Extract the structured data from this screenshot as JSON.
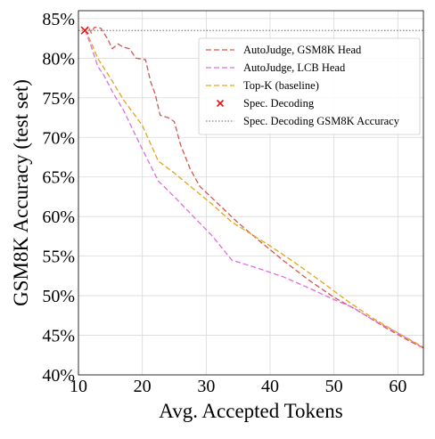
{
  "chart_data": {
    "type": "line",
    "xlabel": "Avg. Accepted Tokens",
    "ylabel": "GSM8K Accuracy (test set)",
    "xlim": [
      10,
      64
    ],
    "ylim": [
      40,
      86
    ],
    "xticks": [
      {
        "value": 10,
        "label": "10"
      },
      {
        "value": 20,
        "label": "20"
      },
      {
        "value": 30,
        "label": "30"
      },
      {
        "value": 40,
        "label": "40"
      },
      {
        "value": 50,
        "label": "50"
      },
      {
        "value": 60,
        "label": "60"
      }
    ],
    "yticks": [
      {
        "value": 40,
        "label": "40%"
      },
      {
        "value": 45,
        "label": "45%"
      },
      {
        "value": 50,
        "label": "50%"
      },
      {
        "value": 55,
        "label": "55%"
      },
      {
        "value": 60,
        "label": "60%"
      },
      {
        "value": 65,
        "label": "65%"
      },
      {
        "value": 70,
        "label": "70%"
      },
      {
        "value": 75,
        "label": "75%"
      },
      {
        "value": 80,
        "label": "80%"
      },
      {
        "value": 85,
        "label": "85%"
      }
    ],
    "grid": true,
    "legend_position": "top-right",
    "series": [
      {
        "name": "AutoJudge, GSM8K Head",
        "style": "dashed",
        "color": "#d9534f",
        "x": [
          11.0,
          11.5,
          12.0,
          12.5,
          13.5,
          14.5,
          15.3,
          16.2,
          17.0,
          18.0,
          19.0,
          20.5,
          21.3,
          22.0,
          22.8,
          24.0,
          25.0,
          26.0,
          27.5,
          29.0,
          32.0,
          35.0,
          38.5,
          42.0,
          46.0,
          50.0,
          54.0,
          58.0,
          62.0,
          64.0
        ],
        "y": [
          83.4,
          84.0,
          83.2,
          83.9,
          83.8,
          82.5,
          81.2,
          81.8,
          81.4,
          81.2,
          80.0,
          79.8,
          77.0,
          75.5,
          72.8,
          72.5,
          72.0,
          69.0,
          66.0,
          63.8,
          61.5,
          59.2,
          56.8,
          54.5,
          52.0,
          49.8,
          48.0,
          46.0,
          44.2,
          43.4
        ]
      },
      {
        "name": "AutoJudge, LCB Head",
        "style": "dashed",
        "color": "#e06ee0",
        "x": [
          11.0,
          12.0,
          13.0,
          14.0,
          15.5,
          17.0,
          18.5,
          20.0,
          22.5,
          25.0,
          28.0,
          31.0,
          34.0,
          38.0,
          42.0,
          46.0,
          50.0,
          53.0,
          56.0,
          60.0,
          64.0
        ],
        "y": [
          83.6,
          81.5,
          79.0,
          77.8,
          75.5,
          73.5,
          71.0,
          68.5,
          64.5,
          62.5,
          60.0,
          57.5,
          54.5,
          53.5,
          52.4,
          51.0,
          49.5,
          48.5,
          47.0,
          45.3,
          43.4
        ]
      },
      {
        "name": "Top-K (baseline)",
        "style": "dashed",
        "color": "#e3a618",
        "x": [
          11.0,
          12.0,
          13.0,
          15.0,
          17.0,
          20.0,
          22.5,
          25.0,
          28.0,
          31.0,
          34.0,
          37.0,
          40.0,
          44.0,
          48.0,
          52.0,
          56.0,
          60.0,
          64.0
        ],
        "y": [
          83.6,
          82.0,
          80.0,
          77.5,
          74.8,
          71.5,
          67.0,
          65.5,
          63.5,
          61.5,
          59.3,
          57.8,
          56.3,
          54.1,
          51.8,
          49.4,
          47.2,
          45.3,
          43.5
        ]
      }
    ],
    "markers": [
      {
        "name": "Spec. Decoding",
        "x": 11.0,
        "y": 83.5,
        "symbol": "x",
        "color": "#ee1111"
      }
    ],
    "reference_lines": [
      {
        "name": "Spec. Decoding GSM8K Accuracy",
        "y": 83.5,
        "style": "dotted",
        "color": "#888888"
      }
    ],
    "legend": [
      {
        "label": "AutoJudge, GSM8K Head",
        "kind": "line",
        "style": "dashed",
        "color": "#d9534f"
      },
      {
        "label": "AutoJudge, LCB Head",
        "kind": "line",
        "style": "dashed",
        "color": "#e06ee0"
      },
      {
        "label": "Top-K (baseline)",
        "kind": "line",
        "style": "dashed",
        "color": "#e3a618"
      },
      {
        "label": "Spec. Decoding",
        "kind": "marker",
        "style": "x",
        "color": "#ee1111"
      },
      {
        "label": "Spec. Decoding GSM8K Accuracy",
        "kind": "line",
        "style": "dotted",
        "color": "#888888"
      }
    ]
  }
}
